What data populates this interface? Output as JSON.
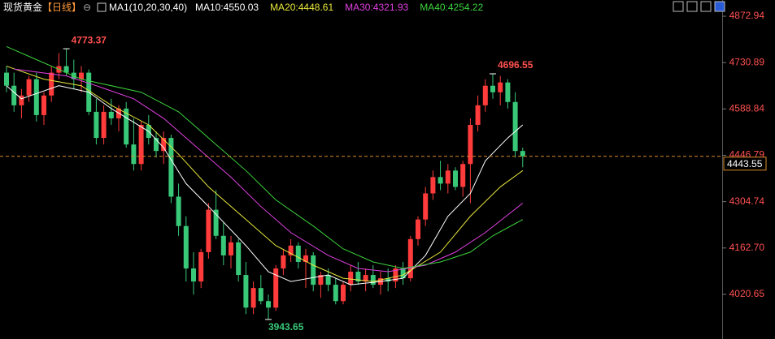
{
  "chart_data": {
    "type": "candlestick",
    "instrument": "现货黄金",
    "period": "【日线】",
    "toggle": "⊖",
    "indicator": "MA1(10,20,30,40)",
    "legend": [
      {
        "text": "MA10:4550.03",
        "color": "#ffffff"
      },
      {
        "text": "MA20:4448.61",
        "color": "#e6e63c"
      },
      {
        "text": "MA30:4321.93",
        "color": "#e040e0"
      },
      {
        "text": "MA40:4254.22",
        "color": "#3cd23c"
      }
    ],
    "up_color": "#ff3b3b",
    "down_color": "#38c878",
    "open": [
      4700,
      4660,
      4600,
      4630,
      4680,
      4570,
      4630,
      4700,
      4720,
      4700,
      4680,
      4700,
      4580,
      4500,
      4580,
      4560,
      4590,
      4480,
      4420,
      4540,
      4500,
      4460,
      4500,
      4320,
      4230,
      4100,
      4060,
      4150,
      4280,
      4200,
      4140,
      4180,
      4080,
      3980,
      4040,
      4000,
      3980,
      4100,
      4140,
      4170,
      4120,
      4140,
      4050,
      4080,
      4050,
      4000,
      4050,
      4090,
      4060,
      4080,
      4050,
      4070,
      4060,
      4100,
      4070,
      4190,
      4250,
      4330,
      4380,
      4360,
      4400,
      4350,
      4420,
      4540,
      4600,
      4660,
      4640,
      4670,
      4610,
      4460
    ],
    "high": [
      4720,
      4700,
      4650,
      4690,
      4700,
      4640,
      4720,
      4760,
      4773.37,
      4740,
      4720,
      4710,
      4620,
      4600,
      4620,
      4600,
      4610,
      4560,
      4550,
      4570,
      4520,
      4520,
      4510,
      4360,
      4260,
      4150,
      4160,
      4300,
      4340,
      4240,
      4200,
      4190,
      4120,
      4060,
      4080,
      4020,
      4110,
      4160,
      4190,
      4180,
      4160,
      4150,
      4090,
      4100,
      4070,
      4060,
      4110,
      4120,
      4100,
      4110,
      4090,
      4100,
      4110,
      4120,
      4200,
      4260,
      4350,
      4400,
      4430,
      4420,
      4410,
      4430,
      4560,
      4630,
      4680,
      4696.55,
      4690,
      4680,
      4640,
      4470
    ],
    "low": [
      4640,
      4580,
      4560,
      4610,
      4550,
      4540,
      4610,
      4680,
      4690,
      4650,
      4640,
      4570,
      4480,
      4480,
      4540,
      4520,
      4470,
      4400,
      4400,
      4480,
      4440,
      4420,
      4300,
      4200,
      4060,
      4020,
      4040,
      4130,
      4190,
      4110,
      4100,
      4060,
      3960,
      3960,
      3990,
      3943.65,
      3970,
      4080,
      4120,
      4100,
      4040,
      4030,
      4010,
      4030,
      3990,
      3990,
      4030,
      4050,
      4030,
      4040,
      4020,
      4030,
      4040,
      4050,
      4060,
      4170,
      4230,
      4310,
      4340,
      4330,
      4340,
      4320,
      4300,
      4520,
      4580,
      4620,
      4600,
      4590,
      4440,
      4410
    ],
    "close": [
      4660,
      4600,
      4630,
      4680,
      4570,
      4630,
      4700,
      4720,
      4700,
      4680,
      4700,
      4580,
      4500,
      4580,
      4560,
      4590,
      4480,
      4420,
      4540,
      4500,
      4460,
      4500,
      4320,
      4230,
      4100,
      4060,
      4150,
      4280,
      4200,
      4140,
      4180,
      4080,
      3980,
      4040,
      4000,
      3980,
      4100,
      4140,
      4170,
      4120,
      4140,
      4050,
      4080,
      4050,
      4000,
      4050,
      4090,
      4060,
      4080,
      4050,
      4070,
      4060,
      4100,
      4070,
      4190,
      4250,
      4330,
      4380,
      4360,
      4400,
      4350,
      4420,
      4540,
      4600,
      4660,
      4640,
      4670,
      4610,
      4460,
      4443.55
    ],
    "ma": [
      {
        "color": "#ffffff",
        "x": [
          0,
          2,
          7,
          11,
          14,
          19,
          21,
          24,
          27,
          32,
          35,
          38,
          43,
          46,
          50,
          53,
          56,
          59,
          62,
          64,
          67,
          69
        ],
        "values": [
          4660,
          4620,
          4660,
          4640,
          4590,
          4520,
          4470,
          4360,
          4290,
          4170,
          4090,
          4060,
          4080,
          4050,
          4060,
          4070,
          4140,
          4260,
          4330,
          4430,
          4500,
          4540
        ]
      },
      {
        "color": "#e6e63c",
        "x": [
          0,
          5,
          10,
          14,
          19,
          23,
          27,
          32,
          36,
          41,
          45,
          49,
          53,
          58,
          62,
          66,
          69
        ],
        "values": [
          4720,
          4680,
          4660,
          4600,
          4540,
          4450,
          4350,
          4250,
          4170,
          4110,
          4070,
          4060,
          4080,
          4150,
          4260,
          4350,
          4400
        ]
      },
      {
        "color": "#e040e0",
        "x": [
          1,
          8,
          12,
          17,
          21,
          25,
          30,
          34,
          38,
          43,
          47,
          51,
          56,
          60,
          64,
          69
        ],
        "values": [
          4711,
          4690,
          4660,
          4620,
          4560,
          4480,
          4380,
          4290,
          4210,
          4140,
          4100,
          4090,
          4110,
          4150,
          4210,
          4300
        ]
      },
      {
        "color": "#3cd23c",
        "x": [
          0,
          4,
          10,
          18,
          23,
          27,
          32,
          36,
          41,
          45,
          49,
          53,
          58,
          62,
          65,
          69
        ],
        "values": [
          4780,
          4740,
          4680,
          4640,
          4580,
          4500,
          4400,
          4310,
          4230,
          4160,
          4120,
          4100,
          4120,
          4150,
          4200,
          4250
        ]
      }
    ],
    "ylim": [
      3883.8,
      4922.7
    ],
    "yticks": [
      4872.94,
      4730.89,
      4588.84,
      4446.79,
      4304.74,
      {
        "value": 4162.7,
        "label": "4162.70"
      },
      4020.65
    ]
  }
}
